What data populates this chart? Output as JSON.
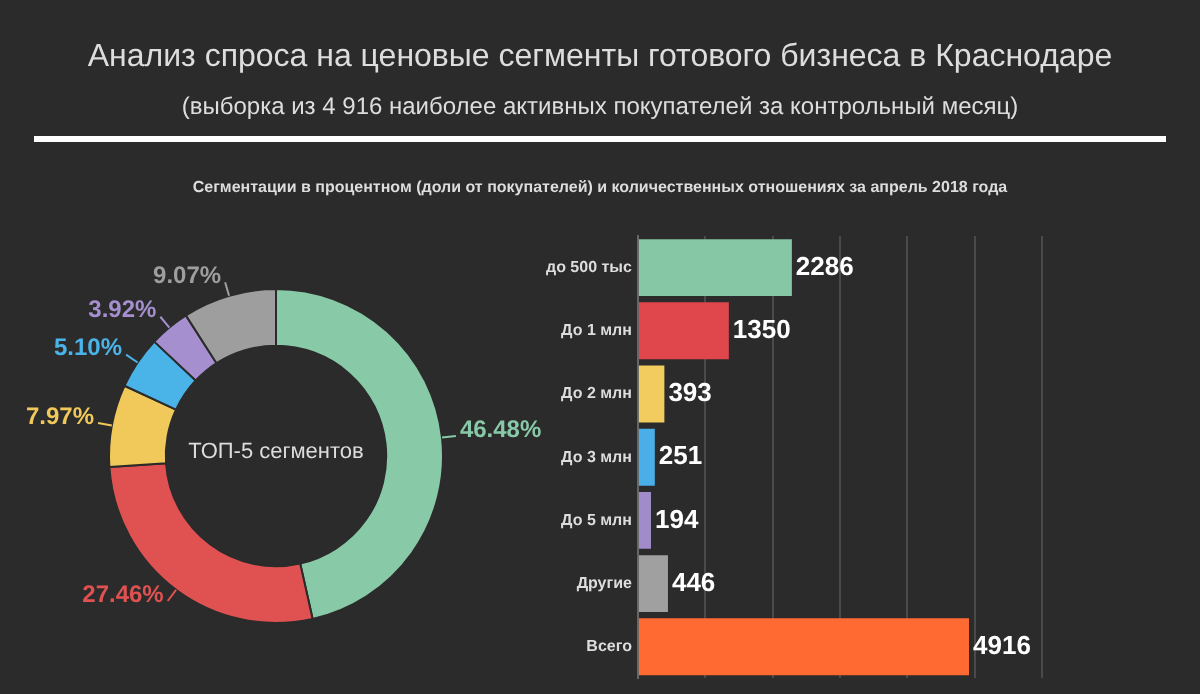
{
  "chart_data": [
    {
      "type": "donut",
      "title": "Анализ спроса на ценовые сегменты готового бизнеса в Краснодаре",
      "subtitle": "(выборка из 4 916 наиболее активных покупателей за контрольный месяц)",
      "annotations": [
        "Сегментации в процентном (доли от покупателей) и количественных отношениях за апрель 2018 года",
        "ТОП-5 сегментов"
      ],
      "categories": [
        null,
        null,
        null,
        null,
        null,
        null
      ],
      "values": [
        46.48,
        27.46,
        7.97,
        5.1,
        3.92,
        9.07
      ],
      "value_labels": [
        "46.48%",
        "27.46%",
        "7.97%",
        "5.10%",
        "3.92%",
        "9.07%"
      ],
      "colors": [
        "#88c9a7",
        "#e05252",
        "#f0c95a",
        "#4ab3e8",
        "#a68fcf",
        "#9e9e9e"
      ],
      "legend": false
    },
    {
      "type": "bar",
      "orientation": "horizontal",
      "categories": [
        "до 500 тыс",
        "До 1 млн",
        "До 2 млн",
        "До 3 млн",
        "До 5 млн",
        "Другие",
        "Всего"
      ],
      "values": [
        2286,
        1350,
        393,
        251,
        194,
        446,
        4916
      ],
      "colors": [
        "#86c7a5",
        "#e0474c",
        "#f2cc5e",
        "#4aaee8",
        "#a08cc8",
        "#a0a0a0",
        "#ff6a33"
      ],
      "xlim": [
        0,
        6000
      ],
      "xticks": [
        {
          "value": 0,
          "label": null
        },
        {
          "value": 1000,
          "label": null
        },
        {
          "value": 2000,
          "label": null
        },
        {
          "value": 3000,
          "label": null
        },
        {
          "value": 4000,
          "label": null
        },
        {
          "value": 5000,
          "label": null
        },
        {
          "value": 6000,
          "label": null
        }
      ],
      "tick_labels": "y",
      "grid": "x",
      "data_labels": true,
      "legend": false
    }
  ]
}
